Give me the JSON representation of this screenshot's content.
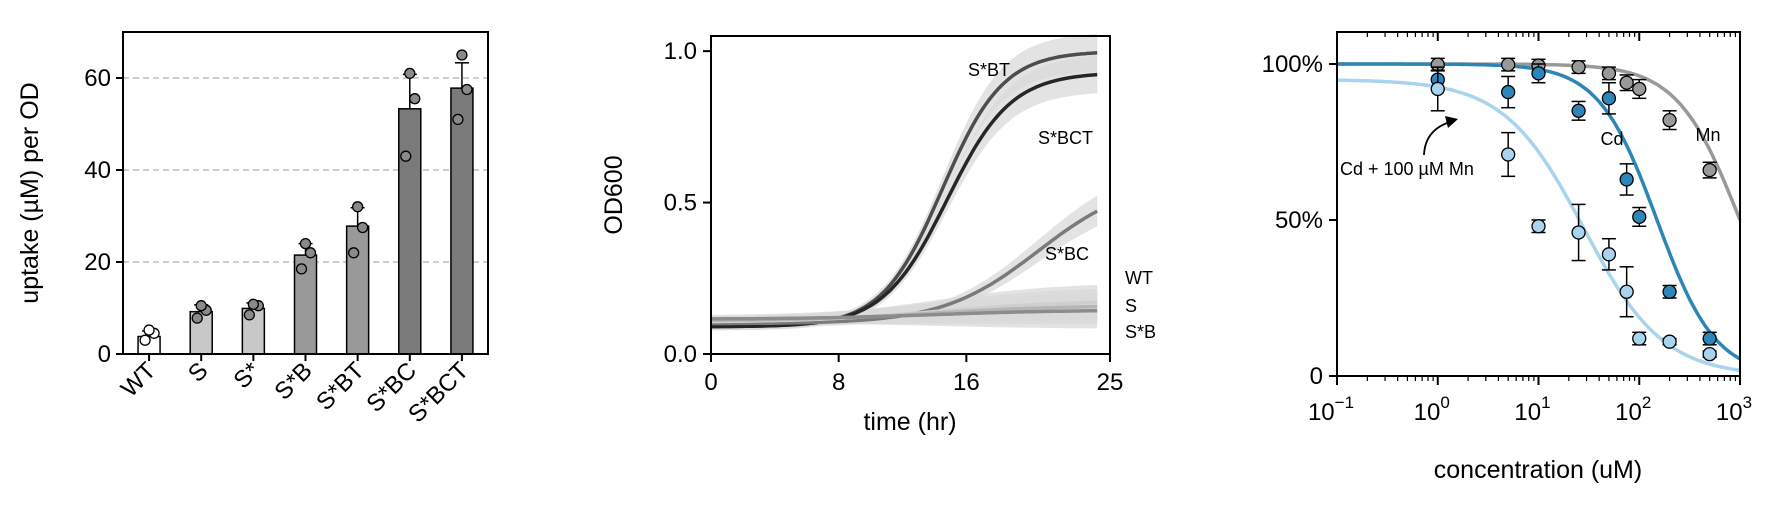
{
  "chart_data": [
    {
      "type": "bar",
      "ylabel": "uptake (µM) per OD",
      "xlabel": "",
      "ylim": [
        0,
        70
      ],
      "yticks": [
        0,
        20,
        40,
        60
      ],
      "grid": "horizontal dashed",
      "categories": [
        "WT",
        "S",
        "S*",
        "S*B",
        "S*BT",
        "S*BC",
        "S*BCT"
      ],
      "values": [
        3.8,
        9.2,
        9.9,
        21.5,
        27.8,
        53.3,
        57.8
      ],
      "errors": [
        1.2,
        1.5,
        1.2,
        2.5,
        4.0,
        7.5,
        5.5
      ],
      "replicates": [
        [
          3,
          4.5,
          5.2
        ],
        [
          7.8,
          9.5,
          10.5
        ],
        [
          8.5,
          10.5,
          10.8
        ],
        [
          18.5,
          22,
          24
        ],
        [
          22,
          27.5,
          32
        ],
        [
          43,
          55.5,
          61
        ],
        [
          51,
          57.5,
          65
        ]
      ],
      "bar_colors": [
        "#ffffff",
        "#c8c8c8",
        "#c8c8c8",
        "#999999",
        "#999999",
        "#7a7a7a",
        "#7a7a7a"
      ]
    },
    {
      "type": "line",
      "xlabel": "time (hr)",
      "ylabel": "OD600",
      "xlim": [
        0,
        25
      ],
      "ylim": [
        0,
        1.05
      ],
      "xticks": [
        0,
        8,
        16,
        25
      ],
      "yticks": [
        0.0,
        0.5,
        1.0
      ],
      "ytick_labels": [
        "0.0",
        "0.5",
        "1.0"
      ],
      "series": [
        {
          "name": "S*BT",
          "color": "#4d4d4d",
          "model": {
            "y0": 0.09,
            "K": 1.0,
            "t0": 14.5,
            "w": 1.9
          }
        },
        {
          "name": "S*BCT",
          "color": "#262626",
          "model": {
            "y0": 0.09,
            "K": 0.93,
            "t0": 14.8,
            "w": 2.0
          }
        },
        {
          "name": "S*BC",
          "color": "#7a7a7a",
          "model": {
            "y0": 0.1,
            "K": 0.58,
            "t0": 20.5,
            "w": 3.0
          }
        },
        {
          "name": "WT",
          "color": "#cfcfcf",
          "model": {
            "y0": 0.105,
            "K": 0.175,
            "t0": 14,
            "w": 4.0
          }
        },
        {
          "name": "S",
          "color": "#b5b5b5",
          "model": {
            "y0": 0.11,
            "K": 0.16,
            "t0": 14,
            "w": 4.0
          }
        },
        {
          "name": "S*B",
          "color": "#8c8c8c",
          "model": {
            "y0": 0.115,
            "K": 0.145,
            "t0": 14,
            "w": 4.0
          }
        }
      ]
    },
    {
      "type": "scatter",
      "xlabel": "concentration (uM)",
      "ylabel": "",
      "xscale": "log",
      "xlim": [
        0.1,
        1000
      ],
      "ylim": [
        0,
        1.05
      ],
      "xtick_labels": [
        {
          "base": "10",
          "exp": "−1"
        },
        {
          "base": "10",
          "exp": "0"
        },
        {
          "base": "10",
          "exp": "1"
        },
        {
          "base": "10",
          "exp": "2"
        },
        {
          "base": "10",
          "exp": "3"
        }
      ],
      "yticks": [
        0,
        0.5,
        1.0
      ],
      "ytick_labels": [
        "0",
        "50%",
        "100%"
      ],
      "annotation": "Cd + 100 µM Mn",
      "series": [
        {
          "name": "Mn",
          "color": "#999999",
          "ic50": 1000,
          "hill": 1.4,
          "top": 1.0,
          "x": [
            1,
            5,
            10,
            25,
            50,
            75,
            100,
            200,
            500
          ],
          "y": [
            0.998,
            0.998,
            0.995,
            0.99,
            0.97,
            0.94,
            0.92,
            0.82,
            0.66
          ],
          "err": [
            0.02,
            0.02,
            0.02,
            0.02,
            0.02,
            0.025,
            0.03,
            0.03,
            0.025
          ]
        },
        {
          "name": "Cd",
          "color": "#2e86b8",
          "ic50": 150,
          "hill": 1.5,
          "top": 1.0,
          "x": [
            1,
            5,
            10,
            25,
            50,
            75,
            100,
            200,
            500
          ],
          "y": [
            0.95,
            0.91,
            0.97,
            0.85,
            0.89,
            0.63,
            0.51,
            0.27,
            0.12
          ],
          "err": [
            0.03,
            0.05,
            0.03,
            0.03,
            0.05,
            0.05,
            0.03,
            0.02,
            0.02
          ]
        },
        {
          "name": "Cd + 100 µM Mn",
          "color": "#a8d4ef",
          "ic50": 28,
          "hill": 1.1,
          "top": 0.95,
          "x": [
            1,
            5,
            10,
            25,
            50,
            75,
            100,
            200,
            500
          ],
          "y": [
            0.92,
            0.71,
            0.48,
            0.46,
            0.39,
            0.27,
            0.12,
            0.11,
            0.07
          ],
          "err": [
            0.07,
            0.07,
            0.02,
            0.09,
            0.05,
            0.08,
            0.02,
            0.01,
            0.01
          ]
        }
      ]
    }
  ]
}
